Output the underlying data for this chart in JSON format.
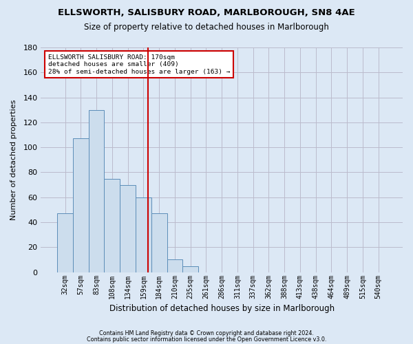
{
  "title1": "ELLSWORTH, SALISBURY ROAD, MARLBOROUGH, SN8 4AE",
  "title2": "Size of property relative to detached houses in Marlborough",
  "xlabel": "Distribution of detached houses by size in Marlborough",
  "ylabel": "Number of detached properties",
  "footnote1": "Contains HM Land Registry data © Crown copyright and database right 2024.",
  "footnote2": "Contains public sector information licensed under the Open Government Licence v3.0.",
  "bin_labels": [
    "32sqm",
    "57sqm",
    "83sqm",
    "108sqm",
    "134sqm",
    "159sqm",
    "184sqm",
    "210sqm",
    "235sqm",
    "261sqm",
    "286sqm",
    "311sqm",
    "337sqm",
    "362sqm",
    "388sqm",
    "413sqm",
    "438sqm",
    "464sqm",
    "489sqm",
    "515sqm",
    "540sqm"
  ],
  "bar_values": [
    47,
    107,
    130,
    75,
    70,
    60,
    47,
    10,
    5,
    0,
    0,
    0,
    0,
    0,
    0,
    0,
    0,
    0,
    0,
    0,
    0
  ],
  "bar_color": "#ccdded",
  "bar_edge_color": "#5b8db8",
  "bar_width": 1.0,
  "ylim": [
    0,
    180
  ],
  "yticks": [
    0,
    20,
    40,
    60,
    80,
    100,
    120,
    140,
    160,
    180
  ],
  "vline_x": 5.28,
  "vline_color": "#cc0000",
  "annot_text_line1": "ELLSWORTH SALISBURY ROAD: 170sqm",
  "annot_text_line2": "detached houses are smaller (409)",
  "annot_text_line3": "28% of semi-detached houses are larger (163) →",
  "annot_box_color": "#ffffff",
  "annot_box_edge": "#cc0000",
  "grid_color": "#bbbbcc",
  "background_color": "#dce8f5",
  "plot_bg_color": "#dce8f5"
}
